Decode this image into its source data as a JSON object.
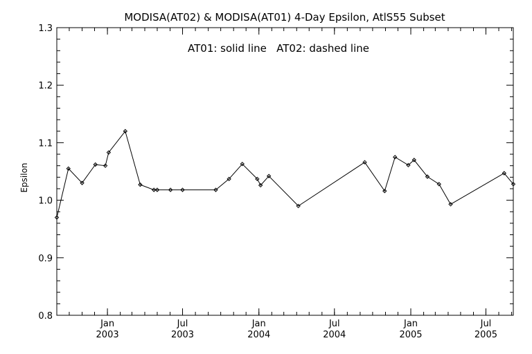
{
  "chart_data": {
    "type": "line",
    "title": "MODISA(AT02) & MODISA(AT01) 4-Day Epsilon, AtlS55 Subset",
    "subtitle": "AT01: solid line   AT02: dashed line",
    "xlabel": "",
    "ylabel": "Epsilon",
    "xlim": [
      "2002-09-01",
      "2005-09-05"
    ],
    "ylim": [
      0.8,
      1.3
    ],
    "yticks": [
      0.8,
      0.9,
      1.0,
      1.1,
      1.2,
      1.3
    ],
    "yticklabels": [
      "0.8",
      "0.9",
      "1.0",
      "1.1",
      "1.2",
      "1.3"
    ],
    "xticks": [
      {
        "date": "2003-01-01",
        "month": "Jan",
        "year": "2003"
      },
      {
        "date": "2003-07-01",
        "month": "Jul",
        "year": "2003"
      },
      {
        "date": "2004-01-01",
        "month": "Jan",
        "year": "2004"
      },
      {
        "date": "2004-07-01",
        "month": "Jul",
        "year": "2004"
      },
      {
        "date": "2005-01-01",
        "month": "Jan",
        "year": "2005"
      },
      {
        "date": "2005-07-01",
        "month": "Jul",
        "year": "2005"
      }
    ],
    "grid": false,
    "series": [
      {
        "name": "AT01",
        "style": "solid",
        "marker": "diamond",
        "points": [
          {
            "x": "2002-09-01",
            "y": 0.97
          },
          {
            "x": "2002-09-29",
            "y": 1.055
          },
          {
            "x": "2002-11-01",
            "y": 1.03
          },
          {
            "x": "2002-12-03",
            "y": 1.062
          },
          {
            "x": "2002-12-27",
            "y": 1.06
          },
          {
            "x": "2003-01-04",
            "y": 1.083
          },
          {
            "x": "2003-02-13",
            "y": 1.12
          },
          {
            "x": "2003-03-21",
            "y": 1.027
          },
          {
            "x": "2003-04-23",
            "y": 1.018
          },
          {
            "x": "2003-05-01",
            "y": 1.018
          },
          {
            "x": "2003-06-02",
            "y": 1.018
          },
          {
            "x": "2003-07-01",
            "y": 1.018
          },
          {
            "x": "2003-09-19",
            "y": 1.018
          },
          {
            "x": "2003-10-21",
            "y": 1.037
          },
          {
            "x": "2003-11-22",
            "y": 1.063
          },
          {
            "x": "2003-12-28",
            "y": 1.037
          },
          {
            "x": "2004-01-05",
            "y": 1.026
          },
          {
            "x": "2004-01-25",
            "y": 1.042
          },
          {
            "x": "2004-04-05",
            "y": 0.99
          },
          {
            "x": "2004-09-12",
            "y": 1.066
          },
          {
            "x": "2004-10-30",
            "y": 1.016
          },
          {
            "x": "2004-11-24",
            "y": 1.075
          },
          {
            "x": "2004-12-26",
            "y": 1.061
          },
          {
            "x": "2005-01-09",
            "y": 1.07
          },
          {
            "x": "2005-02-10",
            "y": 1.041
          },
          {
            "x": "2005-03-10",
            "y": 1.028
          },
          {
            "x": "2005-04-07",
            "y": 0.993
          },
          {
            "x": "2005-08-14",
            "y": 1.047
          },
          {
            "x": "2005-09-05",
            "y": 1.028
          }
        ]
      }
    ],
    "colors": {
      "line": "#000000",
      "axes": "#000000",
      "background": "#ffffff"
    }
  }
}
